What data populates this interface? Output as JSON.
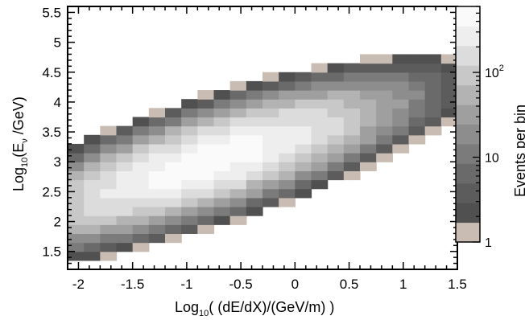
{
  "chart_data": {
    "type": "heatmap",
    "xlabel": {
      "prefix": "Log",
      "sub": "10",
      "body": "( (dE/dX)/(GeV/m) )"
    },
    "ylabel": {
      "prefix": "Log",
      "sub": "10",
      "body1": "(E",
      "sub2": "ν",
      "body2": " /GeV)"
    },
    "xlim": [
      -2.1,
      1.5
    ],
    "ylim": [
      1.2,
      5.6
    ],
    "x_ticks": [
      {
        "v": -2,
        "t": "-2"
      },
      {
        "v": -1.5,
        "t": "-1.5"
      },
      {
        "v": -1,
        "t": "-1"
      },
      {
        "v": -0.5,
        "t": "-0.5"
      },
      {
        "v": 0,
        "t": "0"
      },
      {
        "v": 0.5,
        "t": "0.5"
      },
      {
        "v": 1,
        "t": "1"
      },
      {
        "v": 1.5,
        "t": "1.5"
      }
    ],
    "y_ticks": [
      {
        "v": 1.5,
        "t": "1.5"
      },
      {
        "v": 2,
        "t": "2"
      },
      {
        "v": 2.5,
        "t": "2.5"
      },
      {
        "v": 3,
        "t": "3"
      },
      {
        "v": 3.5,
        "t": "3.5"
      },
      {
        "v": 4,
        "t": "4"
      },
      {
        "v": 4.5,
        "t": "4.5"
      },
      {
        "v": 5,
        "t": "5"
      },
      {
        "v": 5.5,
        "t": "5.5"
      }
    ],
    "bin_width_x": 0.15,
    "bin_width_y": 0.15,
    "colorbar": {
      "title": "Events per bin",
      "scale": "log",
      "range": [
        1,
        600
      ],
      "tick_labels": [
        {
          "v": 1,
          "t": "1"
        },
        {
          "v": 10,
          "t": "10"
        },
        {
          "v": 100,
          "t": "10",
          "sup": "2"
        }
      ],
      "colors": [
        "#c9bcb2",
        "#505050",
        "#5c5c5c",
        "#6a6a6a",
        "#7b7b7b",
        "#8d8d8d",
        "#9f9f9f",
        "#b3b3b3",
        "#c8c8c8",
        "#dcdcdc",
        "#eeeeee",
        "#fafafa"
      ]
    },
    "density_model": {
      "center": [
        -0.8,
        3.0
      ],
      "axis_angle_deg": 33,
      "sigma_major": 0.85,
      "sigma_minor": 0.28,
      "peak_events": 480,
      "min_events": 1
    },
    "grid": false,
    "legend": "colorbar-right"
  }
}
